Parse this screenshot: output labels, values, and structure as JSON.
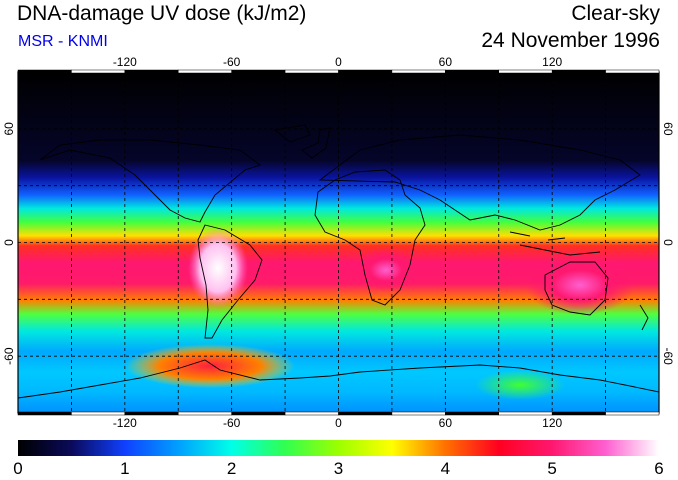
{
  "header": {
    "title": "DNA-damage UV dose (kJ/m2)",
    "subtitle": "MSR - KNMI",
    "condition": "Clear-sky",
    "date": "24 November 1996"
  },
  "colors": {
    "subtitle": "#0000ee",
    "frame": "#000000",
    "grid": "#000000"
  },
  "map": {
    "projection": "equirectangular",
    "lon_range": [
      -180,
      180
    ],
    "lat_range": [
      -90,
      90
    ],
    "lon_ticks": [
      -120,
      -60,
      0,
      60,
      120
    ],
    "lat_ticks": [
      60,
      0,
      -60
    ],
    "lon_tick_labels": [
      "-120",
      "-60",
      "0",
      "60",
      "120"
    ],
    "lat_tick_labels": [
      "60",
      "0",
      "-60"
    ],
    "gridlines": "dashed, every 30 degrees"
  },
  "colorbar": {
    "min": 0,
    "max": 6,
    "tick_labels": [
      "0",
      "1",
      "2",
      "3",
      "4",
      "5",
      "6"
    ],
    "stops": [
      {
        "value": 0.0,
        "color": "#000000"
      },
      {
        "value": 0.5,
        "color": "#0a0a5a"
      },
      {
        "value": 1.0,
        "color": "#1040ff"
      },
      {
        "value": 1.5,
        "color": "#00a0ff"
      },
      {
        "value": 2.0,
        "color": "#00ffe8"
      },
      {
        "value": 2.5,
        "color": "#30ff50"
      },
      {
        "value": 3.0,
        "color": "#9cff00"
      },
      {
        "value": 3.5,
        "color": "#ffff00"
      },
      {
        "value": 4.0,
        "color": "#ff7000"
      },
      {
        "value": 4.5,
        "color": "#ff0020"
      },
      {
        "value": 5.0,
        "color": "#ff1870"
      },
      {
        "value": 5.5,
        "color": "#ff60d0"
      },
      {
        "value": 6.0,
        "color": "#ffffff"
      }
    ]
  }
}
